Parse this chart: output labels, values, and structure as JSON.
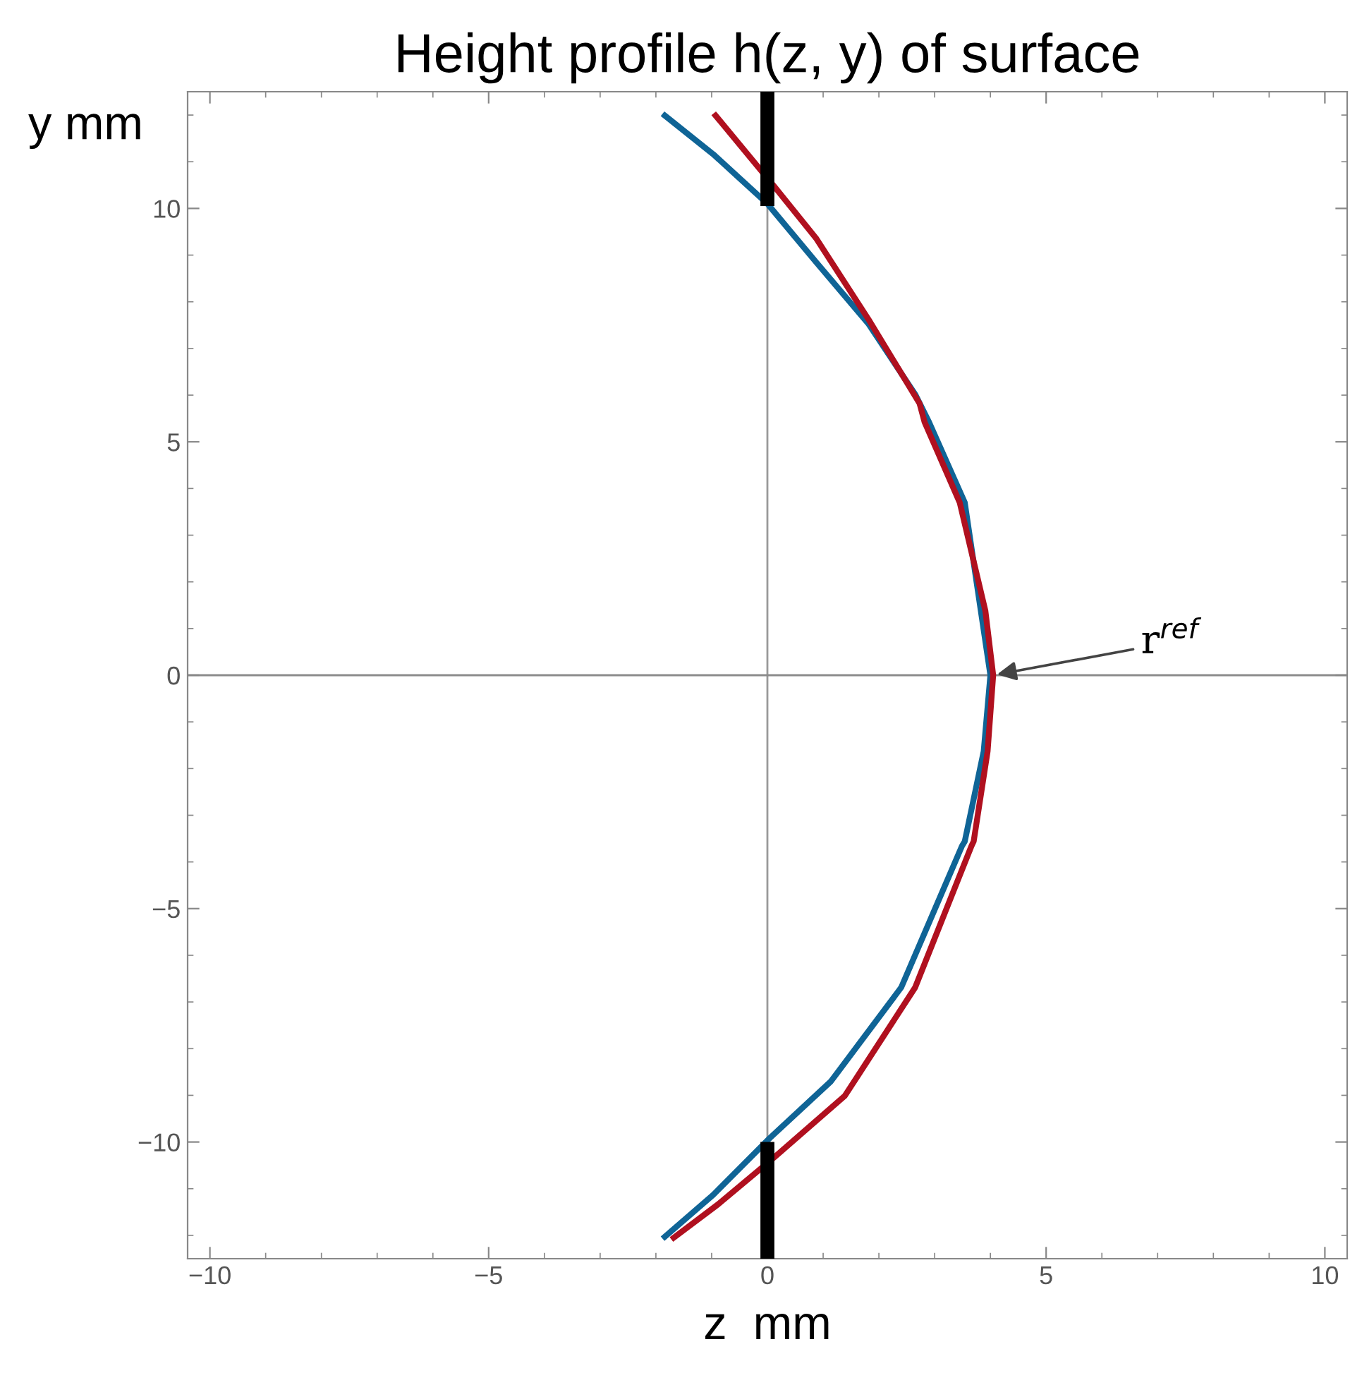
{
  "chart_data": {
    "type": "line",
    "title": "Height profile h(z, y) of surface",
    "xlabel": "z  mm",
    "ylabel": "y mm",
    "xlim": [
      -10.4,
      10.4
    ],
    "ylim": [
      -12.5,
      12.5
    ],
    "xticks": [
      -10,
      -5,
      0,
      5,
      10
    ],
    "yticks": [
      -10,
      -5,
      0,
      5,
      10
    ],
    "grid": false,
    "legend": false,
    "ref_lines": [
      {
        "axis": "x",
        "value": 0,
        "color": "#999999"
      },
      {
        "axis": "y",
        "value": 0,
        "color": "#8c8c8c"
      }
    ],
    "annotations": [
      {
        "text": "r$^{ref}$",
        "x": 4.05,
        "y": 0
      }
    ],
    "series": [
      {
        "color": "#0f6496",
        "x": [
          -1.84,
          -0.97,
          0,
          0.88,
          1.81,
          2.65,
          2.9,
          3.54,
          4.0,
          3.88,
          3.54,
          3.49,
          2.4,
          1.14,
          0.04,
          -0.97,
          -1.84
        ],
        "values": [
          11.99,
          11.16,
          10.1,
          8.84,
          7.53,
          6.02,
          5.42,
          3.7,
          0,
          -1.63,
          -3.56,
          -3.66,
          -6.69,
          -8.7,
          -9.92,
          -11.13,
          -12.03
        ]
      },
      {
        "color": "#b0101f",
        "x": [
          -0.93,
          0.13,
          0.88,
          1.81,
          2.73,
          2.82,
          3.45,
          3.91,
          4.05,
          3.95,
          3.7,
          3.66,
          2.65,
          1.39,
          0.13,
          -0.88,
          -1.68
        ],
        "values": [
          11.99,
          10.46,
          9.35,
          7.63,
          5.82,
          5.42,
          3.7,
          1.38,
          0,
          -1.63,
          -3.56,
          -3.66,
          -6.69,
          -9.01,
          -10.32,
          -11.33,
          -12.05
        ]
      },
      {
        "type": "bar",
        "color": "#000000",
        "x": [
          0,
          0
        ],
        "base": [
          10.05,
          -12.5
        ],
        "values": [
          2.45,
          2.5
        ]
      }
    ]
  }
}
